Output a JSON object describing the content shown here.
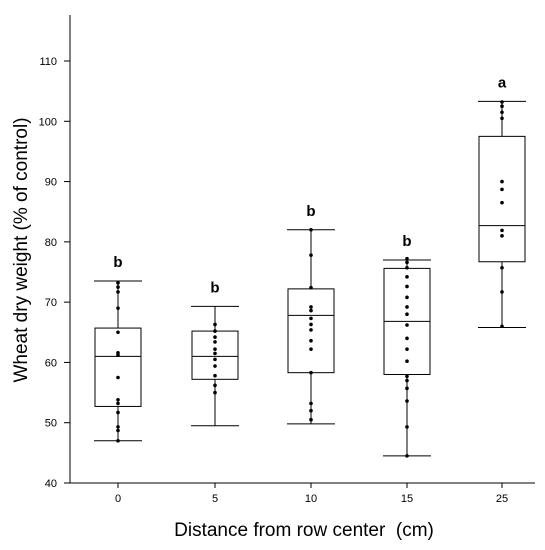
{
  "chart_data": {
    "type": "box",
    "xlabel": "Distance from row center  (cm)",
    "ylabel": "Wheat dry weight (% of control)",
    "ylim": [
      40,
      110
    ],
    "yticks": [
      40,
      50,
      60,
      70,
      80,
      90,
      100,
      110
    ],
    "grid": false,
    "categories": [
      "0",
      "5",
      "10",
      "15",
      "25"
    ],
    "boxes": [
      {
        "category": "0",
        "min": 47,
        "q1": 52.7,
        "median": 61,
        "q3": 65.7,
        "max": 73.5,
        "letter": "b",
        "points": [
          47.0,
          48.7,
          49.3,
          51.7,
          53.2,
          53.8,
          57.5,
          61.2,
          61.6,
          65.0,
          69.0,
          71.7,
          72.5,
          73.2
        ]
      },
      {
        "category": "5",
        "min": 49.5,
        "q1": 57.2,
        "median": 61,
        "q3": 65.2,
        "max": 69.3,
        "letter": "b",
        "points": [
          55.0,
          56.2,
          57.8,
          59.4,
          60.5,
          61.5,
          62.2,
          63.4,
          64.2,
          65.2,
          66.3
        ]
      },
      {
        "category": "10",
        "min": 49.8,
        "q1": 58.3,
        "median": 67.8,
        "q3": 72.2,
        "max": 82,
        "letter": "b",
        "points": [
          50.5,
          52.0,
          53.2,
          58.3,
          62.2,
          63.6,
          65.4,
          66.3,
          67.3,
          68.6,
          69.2,
          72.4,
          77.8,
          82.0
        ]
      },
      {
        "category": "15",
        "min": 44.5,
        "q1": 58,
        "median": 66.8,
        "q3": 75.6,
        "max": 77,
        "letter": "b",
        "points": [
          44.5,
          49.3,
          53.6,
          55.7,
          57.0,
          57.7,
          60.2,
          62.2,
          64.0,
          66.2,
          68.0,
          69.2,
          70.8,
          72.6,
          74.2,
          75.7,
          76.6,
          77.2
        ]
      },
      {
        "category": "25",
        "min": 65.8,
        "q1": 76.7,
        "median": 82.7,
        "q3": 97.5,
        "max": 103.3,
        "letter": "a",
        "points": [
          66.0,
          71.7,
          75.7,
          81.0,
          81.9,
          86.5,
          88.7,
          90.0,
          100.5,
          101.5,
          102.5,
          103.2
        ]
      }
    ]
  }
}
